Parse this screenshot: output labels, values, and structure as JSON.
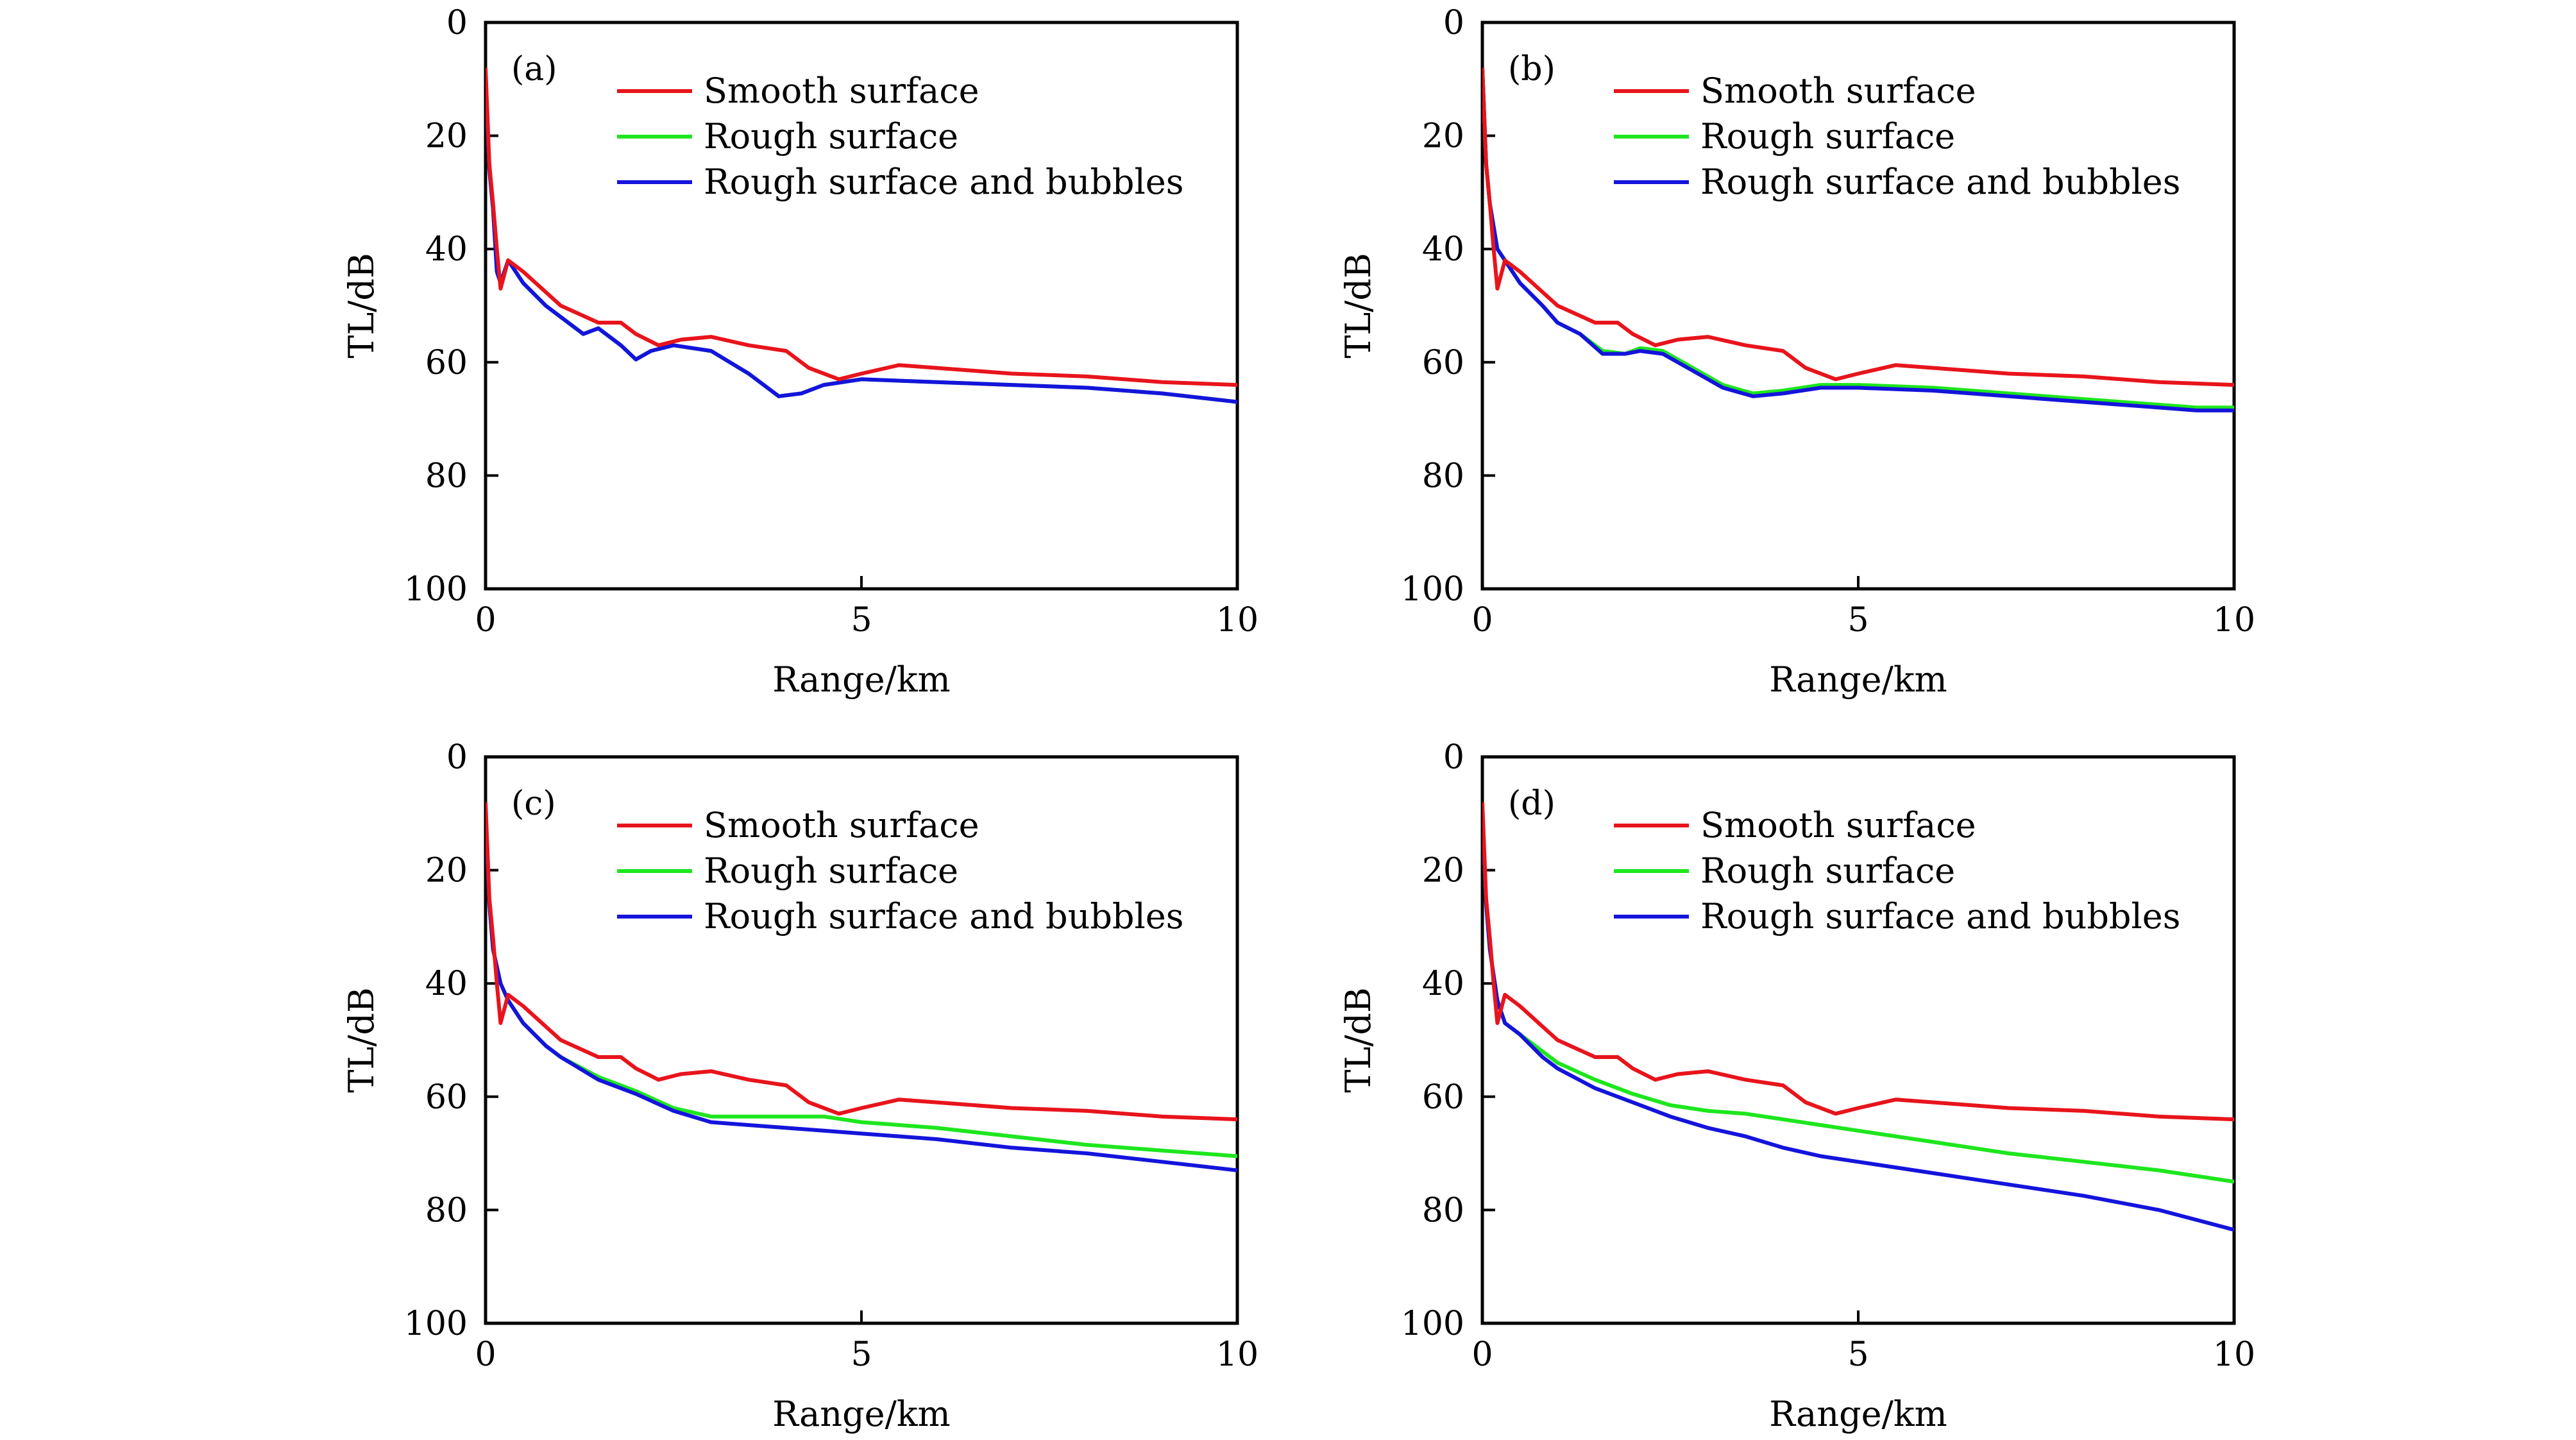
{
  "figure": {
    "colors": {
      "smooth": "#e8141c",
      "rough": "#1ee61e",
      "bubbles": "#1414dc",
      "axis": "#000000"
    }
  },
  "chart_data": [
    {
      "type": "line",
      "panel_label": "(a)",
      "xlabel": "Range/km",
      "ylabel": "TL/dB",
      "xlim": [
        0,
        10
      ],
      "ylim": [
        100,
        0
      ],
      "y_inverted": true,
      "xticks": [
        0,
        5,
        10
      ],
      "yticks": [
        0,
        20,
        40,
        60,
        80,
        100
      ],
      "legend_position": "top-right",
      "series": [
        {
          "name": "Smooth surface",
          "color_key": "smooth",
          "x": [
            0,
            0.05,
            0.1,
            0.15,
            0.2,
            0.3,
            0.5,
            1.0,
            1.5,
            1.8,
            2.0,
            2.3,
            2.6,
            3.0,
            3.5,
            4.0,
            4.3,
            4.7,
            5.0,
            5.5,
            6.0,
            7.0,
            8.0,
            9.0,
            10.0
          ],
          "values": [
            8,
            25,
            32,
            40,
            47,
            42,
            44,
            50,
            53,
            53,
            55,
            57,
            56,
            55.5,
            57,
            58,
            61,
            63,
            62,
            60.5,
            61,
            62,
            62.5,
            63.5,
            64
          ]
        },
        {
          "name": "Rough surface",
          "color_key": "rough",
          "x": [
            0,
            0.05,
            0.1,
            0.15,
            0.2,
            0.3,
            0.5,
            0.8,
            1.0,
            1.3,
            1.5,
            1.8,
            2.0,
            2.2,
            2.5,
            3.0,
            3.5,
            3.9,
            4.2,
            4.5,
            5.0,
            6.0,
            7.0,
            8.0,
            9.0,
            10.0
          ],
          "values": [
            10,
            26,
            33,
            44,
            46,
            42,
            46,
            50,
            52,
            55,
            54,
            57,
            59.5,
            58,
            57,
            58,
            62,
            66,
            65.5,
            64,
            63,
            63.5,
            64,
            64.5,
            65.5,
            67
          ]
        },
        {
          "name": "Rough surface and bubbles",
          "color_key": "bubbles",
          "x": [
            0,
            0.05,
            0.1,
            0.15,
            0.2,
            0.3,
            0.5,
            0.8,
            1.0,
            1.3,
            1.5,
            1.8,
            2.0,
            2.2,
            2.5,
            3.0,
            3.5,
            3.9,
            4.2,
            4.5,
            5.0,
            6.0,
            7.0,
            8.0,
            9.0,
            10.0
          ],
          "values": [
            10,
            26,
            33,
            44,
            46,
            42,
            46,
            50,
            52,
            55,
            54,
            57,
            59.5,
            58,
            57,
            58,
            62,
            66,
            65.5,
            64,
            63,
            63.5,
            64,
            64.5,
            65.5,
            67
          ]
        }
      ]
    },
    {
      "type": "line",
      "panel_label": "(b)",
      "xlabel": "Range/km",
      "ylabel": "TL/dB",
      "xlim": [
        0,
        10
      ],
      "ylim": [
        100,
        0
      ],
      "y_inverted": true,
      "xticks": [
        0,
        5,
        10
      ],
      "yticks": [
        0,
        20,
        40,
        60,
        80,
        100
      ],
      "legend_position": "top-right",
      "series": [
        {
          "name": "Smooth surface",
          "color_key": "smooth",
          "x": [
            0,
            0.05,
            0.1,
            0.15,
            0.2,
            0.3,
            0.5,
            1.0,
            1.5,
            1.8,
            2.0,
            2.3,
            2.6,
            3.0,
            3.5,
            4.0,
            4.3,
            4.7,
            5.0,
            5.5,
            6.0,
            7.0,
            8.0,
            9.0,
            10.0
          ],
          "values": [
            8,
            25,
            32,
            40,
            47,
            42,
            44,
            50,
            53,
            53,
            55,
            57,
            56,
            55.5,
            57,
            58,
            61,
            63,
            62,
            60.5,
            61,
            62,
            62.5,
            63.5,
            64
          ]
        },
        {
          "name": "Rough surface",
          "color_key": "rough",
          "x": [
            0,
            0.05,
            0.1,
            0.2,
            0.3,
            0.5,
            0.8,
            1.0,
            1.3,
            1.6,
            1.9,
            2.1,
            2.4,
            2.8,
            3.2,
            3.6,
            4.0,
            4.5,
            5.0,
            6.0,
            7.0,
            8.0,
            9.0,
            9.5,
            10.0
          ],
          "values": [
            8,
            25,
            32,
            40,
            42,
            46,
            50,
            53,
            55,
            58,
            58.5,
            57.5,
            58,
            61,
            64,
            65.5,
            65,
            64,
            64,
            64.5,
            65.5,
            66.5,
            67.5,
            68,
            68
          ]
        },
        {
          "name": "Rough surface and bubbles",
          "color_key": "bubbles",
          "x": [
            0,
            0.05,
            0.1,
            0.2,
            0.3,
            0.5,
            0.8,
            1.0,
            1.3,
            1.6,
            1.9,
            2.1,
            2.4,
            2.8,
            3.2,
            3.6,
            4.0,
            4.5,
            5.0,
            6.0,
            7.0,
            8.0,
            9.0,
            9.5,
            10.0
          ],
          "values": [
            8,
            25,
            32,
            40,
            42,
            46,
            50,
            53,
            55,
            58.5,
            58.5,
            58,
            58.5,
            61.5,
            64.5,
            66,
            65.5,
            64.5,
            64.5,
            65,
            66,
            67,
            68,
            68.5,
            68.5
          ]
        }
      ]
    },
    {
      "type": "line",
      "panel_label": "(c)",
      "xlabel": "Range/km",
      "ylabel": "TL/dB",
      "xlim": [
        0,
        10
      ],
      "ylim": [
        100,
        0
      ],
      "y_inverted": true,
      "xticks": [
        0,
        5,
        10
      ],
      "yticks": [
        0,
        20,
        40,
        60,
        80,
        100
      ],
      "legend_position": "top-right",
      "series": [
        {
          "name": "Smooth surface",
          "color_key": "smooth",
          "x": [
            0,
            0.05,
            0.1,
            0.15,
            0.2,
            0.3,
            0.5,
            1.0,
            1.5,
            1.8,
            2.0,
            2.3,
            2.6,
            3.0,
            3.5,
            4.0,
            4.3,
            4.7,
            5.0,
            5.5,
            6.0,
            7.0,
            8.0,
            9.0,
            10.0
          ],
          "values": [
            8,
            25,
            32,
            40,
            47,
            42,
            44,
            50,
            53,
            53,
            55,
            57,
            56,
            55.5,
            57,
            58,
            61,
            63,
            62,
            60.5,
            61,
            62,
            62.5,
            63.5,
            64
          ]
        },
        {
          "name": "Rough surface",
          "color_key": "rough",
          "x": [
            0,
            0.05,
            0.1,
            0.2,
            0.3,
            0.5,
            0.8,
            1.0,
            1.5,
            2.0,
            2.5,
            3.0,
            3.5,
            4.0,
            4.5,
            5.0,
            6.0,
            7.0,
            8.0,
            9.0,
            10.0
          ],
          "values": [
            10,
            26,
            34,
            40,
            43,
            47,
            51,
            53,
            56.5,
            59,
            62,
            63.5,
            63.5,
            63.5,
            63.5,
            64.5,
            65.5,
            67,
            68.5,
            69.5,
            70.5
          ]
        },
        {
          "name": "Rough surface and bubbles",
          "color_key": "bubbles",
          "x": [
            0,
            0.05,
            0.1,
            0.2,
            0.3,
            0.5,
            0.8,
            1.0,
            1.5,
            2.0,
            2.5,
            3.0,
            3.5,
            4.0,
            4.5,
            5.0,
            6.0,
            7.0,
            8.0,
            9.0,
            10.0
          ],
          "values": [
            10,
            26,
            34,
            40,
            43,
            47,
            51,
            53,
            57,
            59.5,
            62.5,
            64.5,
            65,
            65.5,
            66,
            66.5,
            67.5,
            69,
            70,
            71.5,
            73
          ]
        }
      ]
    },
    {
      "type": "line",
      "panel_label": "(d)",
      "xlabel": "Range/km",
      "ylabel": "TL/dB",
      "xlim": [
        0,
        10
      ],
      "ylim": [
        100,
        0
      ],
      "y_inverted": true,
      "xticks": [
        0,
        5,
        10
      ],
      "yticks": [
        0,
        20,
        40,
        60,
        80,
        100
      ],
      "legend_position": "top-right",
      "series": [
        {
          "name": "Smooth surface",
          "color_key": "smooth",
          "x": [
            0,
            0.05,
            0.1,
            0.15,
            0.2,
            0.3,
            0.5,
            1.0,
            1.5,
            1.8,
            2.0,
            2.3,
            2.6,
            3.0,
            3.5,
            4.0,
            4.3,
            4.7,
            5.0,
            5.5,
            6.0,
            7.0,
            8.0,
            9.0,
            10.0
          ],
          "values": [
            8,
            25,
            32,
            40,
            47,
            42,
            44,
            50,
            53,
            53,
            55,
            57,
            56,
            55.5,
            57,
            58,
            61,
            63,
            62,
            60.5,
            61,
            62,
            62.5,
            63.5,
            64
          ]
        },
        {
          "name": "Rough surface",
          "color_key": "rough",
          "x": [
            0,
            0.05,
            0.1,
            0.2,
            0.3,
            0.5,
            0.8,
            1.0,
            1.5,
            2.0,
            2.5,
            3.0,
            3.5,
            4.0,
            4.5,
            5.0,
            6.0,
            7.0,
            8.0,
            9.0,
            10.0
          ],
          "values": [
            10,
            26,
            34,
            43,
            47,
            49,
            52,
            54,
            57,
            59.5,
            61.5,
            62.5,
            63,
            64,
            65,
            66,
            68,
            70,
            71.5,
            73,
            75
          ]
        },
        {
          "name": "Rough surface and bubbles",
          "color_key": "bubbles",
          "x": [
            0,
            0.05,
            0.1,
            0.2,
            0.3,
            0.5,
            0.8,
            1.0,
            1.5,
            2.0,
            2.5,
            3.0,
            3.5,
            4.0,
            4.5,
            5.0,
            6.0,
            7.0,
            8.0,
            9.0,
            10.0
          ],
          "values": [
            10,
            26,
            34,
            43,
            47,
            49,
            53,
            55,
            58.5,
            61,
            63.5,
            65.5,
            67,
            69,
            70.5,
            71.5,
            73.5,
            75.5,
            77.5,
            80,
            83.5
          ]
        }
      ]
    }
  ]
}
